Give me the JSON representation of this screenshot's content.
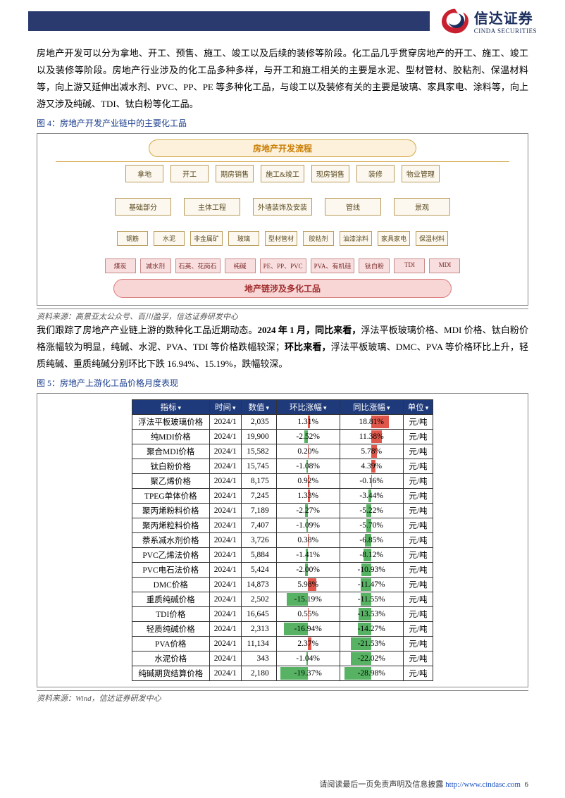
{
  "logo": {
    "cn": "信达证券",
    "en": "CINDA SECURITIES"
  },
  "para1": "房地产开发可以分为拿地、开工、预售、施工、竣工以及后续的装修等阶段。化工品几乎贯穿房地产的开工、施工、竣工以及装修等阶段。房地产行业涉及的化工品多种多样，与开工和施工相关的主要是水泥、型材管材、胶粘剂、保温材料等，向上游又延伸出减水剂、PVC、PP、PE 等多种化工品，与竣工以及装修有关的主要是玻璃、家具家电、涂料等，向上游又涉及纯碱、TDI、钛白粉等化工品。",
  "fig4_title": "图 4：房地产开发产业链中的主要化工品",
  "fig4": {
    "header": "房地产开发流程",
    "row1": [
      "拿地",
      "开工",
      "期房销售",
      "施工&竣工",
      "现房销售",
      "装修",
      "物业管理"
    ],
    "row2": [
      "基础部分",
      "主体工程",
      "外墙装饰及安装",
      "管线",
      "景观"
    ],
    "row3": [
      "钢筋",
      "水泥",
      "非金属矿",
      "玻璃",
      "型材管材",
      "胶粘剂",
      "油漆涂料",
      "家具家电",
      "保温材料"
    ],
    "row4": [
      "煤炭",
      "减水剂",
      "石英、花岗石",
      "纯碱",
      "PE、PP、PVC",
      "PVA、有机硅",
      "钛白粉",
      "TDI",
      "MDI"
    ],
    "footer": "地产链涉及多化工品"
  },
  "fig4_source": "资料来源：高景亚太公众号、百川盈孚，信达证券研发中心",
  "para2a": "我们跟踪了房地产产业链上游的数种化工品近期动态。",
  "para2b": "2024 年 1 月，同比来看，",
  "para2c": "浮法平板玻璃价格、MDI 价格、钛白粉价格涨幅较为明显，纯碱、水泥、PVA、TDI 等价格跌幅较深；",
  "para2d": "环比来看，",
  "para2e": "浮法平板玻璃、DMC、PVA 等价格环比上升，轻质纯碱、重质纯碱分别环比下跌 16.94%、15.19%，跌幅较深。",
  "fig5_title": "图 5：房地产上游化工品价格月度表现",
  "tbl": {
    "headers": [
      "指标",
      "时间",
      "数值",
      "环比涨幅",
      "同比涨幅",
      "单位"
    ],
    "mom_max": 20,
    "yoy_max": 30,
    "rows": [
      {
        "name": "浮法平板玻璃价格",
        "time": "2024/1",
        "val": "2,035",
        "mom": 1.31,
        "yoy": 18.81,
        "unit": "元/吨"
      },
      {
        "name": "纯MDI价格",
        "time": "2024/1",
        "val": "19,900",
        "mom": -2.52,
        "yoy": 11.38,
        "unit": "元/吨"
      },
      {
        "name": "聚合MDI价格",
        "time": "2024/1",
        "val": "15,582",
        "mom": 0.2,
        "yoy": 5.78,
        "unit": "元/吨"
      },
      {
        "name": "钛白粉价格",
        "time": "2024/1",
        "val": "15,745",
        "mom": -1.08,
        "yoy": 4.39,
        "unit": "元/吨"
      },
      {
        "name": "聚乙烯价格",
        "time": "2024/1",
        "val": "8,175",
        "mom": 0.92,
        "yoy": -0.16,
        "unit": "元/吨"
      },
      {
        "name": "TPEG单体价格",
        "time": "2024/1",
        "val": "7,245",
        "mom": 1.33,
        "yoy": -3.44,
        "unit": "元/吨"
      },
      {
        "name": "聚丙烯粉料价格",
        "time": "2024/1",
        "val": "7,189",
        "mom": -2.27,
        "yoy": -5.22,
        "unit": "元/吨"
      },
      {
        "name": "聚丙烯粒料价格",
        "time": "2024/1",
        "val": "7,407",
        "mom": -1.09,
        "yoy": -5.7,
        "unit": "元/吨"
      },
      {
        "name": "萘系减水剂价格",
        "time": "2024/1",
        "val": "3,726",
        "mom": 0.38,
        "yoy": -6.85,
        "unit": "元/吨"
      },
      {
        "name": "PVC乙烯法价格",
        "time": "2024/1",
        "val": "5,884",
        "mom": -1.41,
        "yoy": -8.12,
        "unit": "元/吨"
      },
      {
        "name": "PVC电石法价格",
        "time": "2024/1",
        "val": "5,424",
        "mom": -2.0,
        "yoy": -10.93,
        "unit": "元/吨"
      },
      {
        "name": "DMC价格",
        "time": "2024/1",
        "val": "14,873",
        "mom": 5.98,
        "yoy": -11.47,
        "unit": "元/吨"
      },
      {
        "name": "重质纯碱价格",
        "time": "2024/1",
        "val": "2,502",
        "mom": -15.19,
        "yoy": -11.55,
        "unit": "元/吨"
      },
      {
        "name": "TDI价格",
        "time": "2024/1",
        "val": "16,645",
        "mom": 0.55,
        "yoy": -13.53,
        "unit": "元/吨"
      },
      {
        "name": "轻质纯碱价格",
        "time": "2024/1",
        "val": "2,313",
        "mom": -16.94,
        "yoy": -14.27,
        "unit": "元/吨"
      },
      {
        "name": "PVA价格",
        "time": "2024/1",
        "val": "11,134",
        "mom": 2.37,
        "yoy": -21.53,
        "unit": "元/吨"
      },
      {
        "name": "水泥价格",
        "time": "2024/1",
        "val": "343",
        "mom": -1.04,
        "yoy": -22.02,
        "unit": "元/吨"
      },
      {
        "name": "纯碱期货结算价格",
        "time": "2024/1",
        "val": "2,180",
        "mom": -19.37,
        "yoy": -28.98,
        "unit": "元/吨"
      }
    ],
    "colors": {
      "pos": "#d93a2b",
      "neg": "#3aa648"
    }
  },
  "fig5_source": "资料来源：Wind，信达证券研发中心",
  "footer_text": "请阅读最后一页免责声明及信息披露 ",
  "footer_url": "http://www.cindasc.com",
  "footer_page": "6"
}
